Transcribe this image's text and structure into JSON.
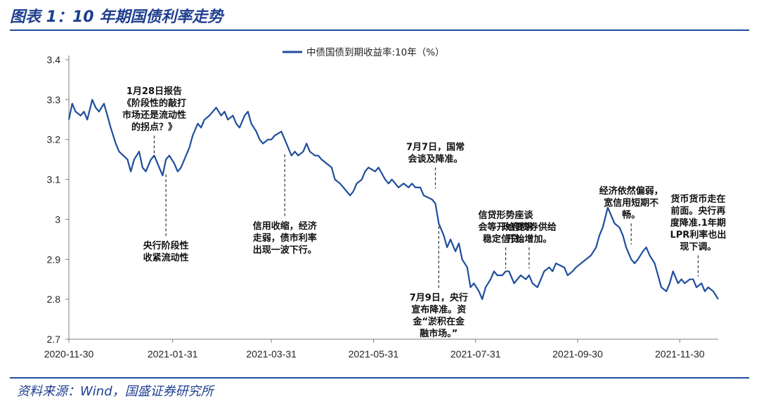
{
  "figure_title": "图表 1：10 年期国债利率走势",
  "source": "资料来源：Wind，国盛证券研究所",
  "colors": {
    "series": "#1f4e9c",
    "title": "#1f3f8f",
    "axis": "#7f7f7f",
    "text": "#111111"
  },
  "chart_data": {
    "type": "line",
    "title": "",
    "xlabel": "",
    "ylabel": "",
    "ylim": [
      2.7,
      3.4
    ],
    "y_ticks": [
      2.7,
      2.8,
      2.9,
      3,
      3.1,
      3.2,
      3.3,
      3.4
    ],
    "x_range": [
      "2020-11-30",
      "2021-12-23"
    ],
    "x_ticks": [
      "2020-11-30",
      "2021-01-31",
      "2021-03-31",
      "2021-05-31",
      "2021-07-31",
      "2021-09-30",
      "2021-11-30"
    ],
    "grid": false,
    "legend_position": "top-center",
    "series": [
      {
        "name": "中债国债到期收益率:10年（%）",
        "points": [
          [
            "2020-11-30",
            3.25
          ],
          [
            "2020-12-02",
            3.29
          ],
          [
            "2020-12-04",
            3.27
          ],
          [
            "2020-12-07",
            3.26
          ],
          [
            "2020-12-09",
            3.27
          ],
          [
            "2020-12-11",
            3.25
          ],
          [
            "2020-12-14",
            3.3
          ],
          [
            "2020-12-16",
            3.28
          ],
          [
            "2020-12-18",
            3.27
          ],
          [
            "2020-12-21",
            3.29
          ],
          [
            "2020-12-23",
            3.26
          ],
          [
            "2020-12-25",
            3.23
          ],
          [
            "2020-12-28",
            3.19
          ],
          [
            "2020-12-30",
            3.17
          ],
          [
            "2021-01-04",
            3.15
          ],
          [
            "2021-01-06",
            3.12
          ],
          [
            "2021-01-08",
            3.15
          ],
          [
            "2021-01-11",
            3.17
          ],
          [
            "2021-01-13",
            3.13
          ],
          [
            "2021-01-15",
            3.12
          ],
          [
            "2021-01-18",
            3.15
          ],
          [
            "2021-01-20",
            3.16
          ],
          [
            "2021-01-22",
            3.14
          ],
          [
            "2021-01-25",
            3.11
          ],
          [
            "2021-01-27",
            3.15
          ],
          [
            "2021-01-29",
            3.16
          ],
          [
            "2021-02-01",
            3.14
          ],
          [
            "2021-02-03",
            3.12
          ],
          [
            "2021-02-05",
            3.13
          ],
          [
            "2021-02-08",
            3.16
          ],
          [
            "2021-02-10",
            3.18
          ],
          [
            "2021-02-12",
            3.21
          ],
          [
            "2021-02-15",
            3.24
          ],
          [
            "2021-02-17",
            3.23
          ],
          [
            "2021-02-19",
            3.25
          ],
          [
            "2021-02-22",
            3.26
          ],
          [
            "2021-02-24",
            3.27
          ],
          [
            "2021-02-26",
            3.28
          ],
          [
            "2021-03-01",
            3.26
          ],
          [
            "2021-03-03",
            3.27
          ],
          [
            "2021-03-05",
            3.25
          ],
          [
            "2021-03-08",
            3.26
          ],
          [
            "2021-03-10",
            3.24
          ],
          [
            "2021-03-12",
            3.23
          ],
          [
            "2021-03-15",
            3.26
          ],
          [
            "2021-03-17",
            3.27
          ],
          [
            "2021-03-19",
            3.24
          ],
          [
            "2021-03-22",
            3.22
          ],
          [
            "2021-03-24",
            3.2
          ],
          [
            "2021-03-26",
            3.19
          ],
          [
            "2021-03-29",
            3.2
          ],
          [
            "2021-03-31",
            3.2
          ],
          [
            "2021-04-02",
            3.21
          ],
          [
            "2021-04-06",
            3.22
          ],
          [
            "2021-04-08",
            3.2
          ],
          [
            "2021-04-12",
            3.16
          ],
          [
            "2021-04-14",
            3.17
          ],
          [
            "2021-04-16",
            3.16
          ],
          [
            "2021-04-19",
            3.17
          ],
          [
            "2021-04-21",
            3.19
          ],
          [
            "2021-04-23",
            3.17
          ],
          [
            "2021-04-26",
            3.16
          ],
          [
            "2021-04-28",
            3.16
          ],
          [
            "2021-04-30",
            3.15
          ],
          [
            "2021-05-06",
            3.13
          ],
          [
            "2021-05-08",
            3.1
          ],
          [
            "2021-05-11",
            3.09
          ],
          [
            "2021-05-13",
            3.08
          ],
          [
            "2021-05-17",
            3.06
          ],
          [
            "2021-05-19",
            3.07
          ],
          [
            "2021-05-21",
            3.09
          ],
          [
            "2021-05-24",
            3.1
          ],
          [
            "2021-05-26",
            3.12
          ],
          [
            "2021-05-28",
            3.13
          ],
          [
            "2021-06-01",
            3.12
          ],
          [
            "2021-06-03",
            3.13
          ],
          [
            "2021-06-07",
            3.1
          ],
          [
            "2021-06-09",
            3.09
          ],
          [
            "2021-06-11",
            3.1
          ],
          [
            "2021-06-15",
            3.08
          ],
          [
            "2021-06-18",
            3.09
          ],
          [
            "2021-06-21",
            3.08
          ],
          [
            "2021-06-23",
            3.09
          ],
          [
            "2021-06-25",
            3.08
          ],
          [
            "2021-06-28",
            3.08
          ],
          [
            "2021-06-30",
            3.06
          ],
          [
            "2021-07-05",
            3.05
          ],
          [
            "2021-07-07",
            3.04
          ],
          [
            "2021-07-09",
            2.99
          ],
          [
            "2021-07-12",
            2.96
          ],
          [
            "2021-07-14",
            2.93
          ],
          [
            "2021-07-16",
            2.95
          ],
          [
            "2021-07-19",
            2.92
          ],
          [
            "2021-07-21",
            2.94
          ],
          [
            "2021-07-23",
            2.9
          ],
          [
            "2021-07-26",
            2.88
          ],
          [
            "2021-07-28",
            2.83
          ],
          [
            "2021-07-30",
            2.84
          ],
          [
            "2021-08-02",
            2.82
          ],
          [
            "2021-08-04",
            2.8
          ],
          [
            "2021-08-06",
            2.83
          ],
          [
            "2021-08-09",
            2.85
          ],
          [
            "2021-08-11",
            2.87
          ],
          [
            "2021-08-13",
            2.86
          ],
          [
            "2021-08-16",
            2.86
          ],
          [
            "2021-08-18",
            2.87
          ],
          [
            "2021-08-20",
            2.87
          ],
          [
            "2021-08-23",
            2.84
          ],
          [
            "2021-08-25",
            2.85
          ],
          [
            "2021-08-27",
            2.86
          ],
          [
            "2021-08-30",
            2.85
          ],
          [
            "2021-09-01",
            2.86
          ],
          [
            "2021-09-03",
            2.84
          ],
          [
            "2021-09-06",
            2.83
          ],
          [
            "2021-09-08",
            2.85
          ],
          [
            "2021-09-10",
            2.87
          ],
          [
            "2021-09-13",
            2.88
          ],
          [
            "2021-09-15",
            2.87
          ],
          [
            "2021-09-17",
            2.89
          ],
          [
            "2021-09-22",
            2.88
          ],
          [
            "2021-09-24",
            2.86
          ],
          [
            "2021-09-27",
            2.87
          ],
          [
            "2021-09-29",
            2.88
          ],
          [
            "2021-10-08",
            2.91
          ],
          [
            "2021-10-11",
            2.93
          ],
          [
            "2021-10-13",
            2.96
          ],
          [
            "2021-10-15",
            2.98
          ],
          [
            "2021-10-18",
            3.03
          ],
          [
            "2021-10-20",
            3.01
          ],
          [
            "2021-10-22",
            2.99
          ],
          [
            "2021-10-25",
            2.98
          ],
          [
            "2021-10-27",
            2.96
          ],
          [
            "2021-10-29",
            2.93
          ],
          [
            "2021-11-01",
            2.9
          ],
          [
            "2021-11-03",
            2.89
          ],
          [
            "2021-11-05",
            2.9
          ],
          [
            "2021-11-08",
            2.92
          ],
          [
            "2021-11-10",
            2.93
          ],
          [
            "2021-11-12",
            2.91
          ],
          [
            "2021-11-15",
            2.89
          ],
          [
            "2021-11-17",
            2.86
          ],
          [
            "2021-11-19",
            2.83
          ],
          [
            "2021-11-22",
            2.82
          ],
          [
            "2021-11-24",
            2.84
          ],
          [
            "2021-11-26",
            2.87
          ],
          [
            "2021-11-29",
            2.84
          ],
          [
            "2021-12-01",
            2.85
          ],
          [
            "2021-12-03",
            2.84
          ],
          [
            "2021-12-06",
            2.85
          ],
          [
            "2021-12-08",
            2.85
          ],
          [
            "2021-12-10",
            2.83
          ],
          [
            "2021-12-13",
            2.84
          ],
          [
            "2021-12-15",
            2.82
          ],
          [
            "2021-12-17",
            2.83
          ],
          [
            "2021-12-20",
            2.82
          ],
          [
            "2021-12-23",
            2.8
          ]
        ]
      }
    ],
    "annotations": [
      {
        "date": "2021-01-20",
        "value": 3.15,
        "label_position": "above",
        "lines": [
          "1月28日报告",
          "《阶段性的敲打",
          "市场还是流动性",
          "的拐点？》"
        ]
      },
      {
        "date": "2021-01-27",
        "value": 3.12,
        "label_position": "below",
        "lines": [
          "央行阶段性",
          "收紧流动性"
        ]
      },
      {
        "date": "2021-04-08",
        "value": 3.17,
        "label_position": "below",
        "lines": [
          "信用收缩，经济",
          "走弱，债市利率",
          "出现一波下行。"
        ]
      },
      {
        "date": "2021-07-07",
        "value": 3.07,
        "label_position": "above",
        "lines": [
          "7月7日，国常",
          "会谈及降准。"
        ]
      },
      {
        "date": "2021-07-09",
        "value": 2.99,
        "label_position": "below",
        "lines": [
          "7月9日，央行",
          "宣布降准。资",
          "金“淤积在金",
          "融市场。”"
        ]
      },
      {
        "date": "2021-08-18",
        "value": 2.87,
        "label_position": "above",
        "lines": [
          "信贷形势座谈",
          "会等开始要求",
          "稳定信贷。"
        ]
      },
      {
        "date": "2021-09-01",
        "value": 2.87,
        "label_position": "above",
        "lines": [
          "政府债券供给",
          "开始增加。"
        ]
      },
      {
        "date": "2021-11-01",
        "value": 2.93,
        "label_position": "above",
        "lines": [
          "经济依然偏弱，",
          "宽信用短期不",
          "畅。"
        ]
      },
      {
        "date": "2021-12-11",
        "value": 2.85,
        "label_position": "above",
        "lines": [
          "货币货币走在",
          "前面。央行再",
          "度降准.1年期",
          "LPR利率也出",
          "现下调。"
        ]
      }
    ]
  }
}
